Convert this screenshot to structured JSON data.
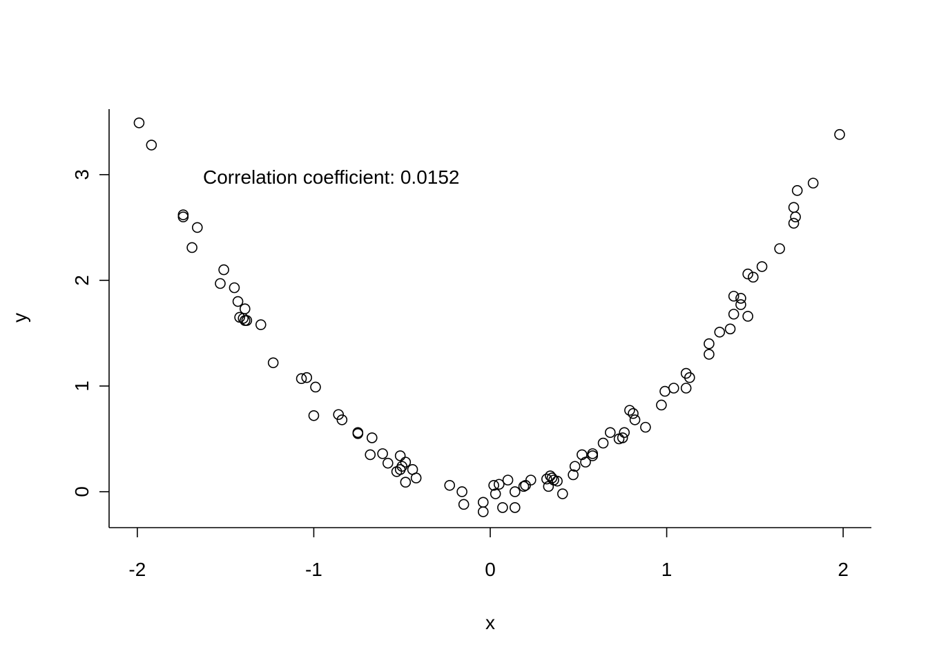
{
  "chart_data": {
    "type": "scatter",
    "title": "",
    "xlabel": "x",
    "ylabel": "y",
    "xlim": [
      -2.16,
      2.16
    ],
    "ylim": [
      -0.34,
      3.62
    ],
    "grid": false,
    "x_ticks": [
      -2,
      -1,
      0,
      1,
      2
    ],
    "y_ticks": [
      0,
      1,
      2,
      3
    ],
    "x_tick_labels": [
      "-2",
      "-1",
      "0",
      "1",
      "2"
    ],
    "y_tick_labels": [
      "0",
      "1",
      "2",
      "3"
    ],
    "annotation": "Correlation coefficient: 0.0152",
    "point_color": "#000000",
    "points": [
      {
        "x": -1.99,
        "y": 3.49
      },
      {
        "x": -1.92,
        "y": 3.28
      },
      {
        "x": -1.74,
        "y": 2.62
      },
      {
        "x": -1.74,
        "y": 2.6
      },
      {
        "x": -1.66,
        "y": 2.5
      },
      {
        "x": -1.69,
        "y": 2.31
      },
      {
        "x": -1.51,
        "y": 2.1
      },
      {
        "x": -1.53,
        "y": 1.97
      },
      {
        "x": -1.45,
        "y": 1.93
      },
      {
        "x": -1.43,
        "y": 1.8
      },
      {
        "x": -1.39,
        "y": 1.73
      },
      {
        "x": -1.42,
        "y": 1.65
      },
      {
        "x": -1.4,
        "y": 1.64
      },
      {
        "x": -1.39,
        "y": 1.62
      },
      {
        "x": -1.38,
        "y": 1.62
      },
      {
        "x": -1.3,
        "y": 1.58
      },
      {
        "x": -1.23,
        "y": 1.22
      },
      {
        "x": -1.07,
        "y": 1.07
      },
      {
        "x": -1.04,
        "y": 1.08
      },
      {
        "x": -0.99,
        "y": 0.99
      },
      {
        "x": -1.0,
        "y": 0.72
      },
      {
        "x": -0.86,
        "y": 0.73
      },
      {
        "x": -0.84,
        "y": 0.68
      },
      {
        "x": -0.75,
        "y": 0.56
      },
      {
        "x": -0.75,
        "y": 0.55
      },
      {
        "x": -0.67,
        "y": 0.51
      },
      {
        "x": -0.68,
        "y": 0.35
      },
      {
        "x": -0.61,
        "y": 0.36
      },
      {
        "x": -0.58,
        "y": 0.27
      },
      {
        "x": -0.51,
        "y": 0.34
      },
      {
        "x": -0.48,
        "y": 0.28
      },
      {
        "x": -0.5,
        "y": 0.24
      },
      {
        "x": -0.51,
        "y": 0.21
      },
      {
        "x": -0.53,
        "y": 0.19
      },
      {
        "x": -0.44,
        "y": 0.21
      },
      {
        "x": -0.42,
        "y": 0.13
      },
      {
        "x": -0.48,
        "y": 0.09
      },
      {
        "x": -0.23,
        "y": 0.06
      },
      {
        "x": -0.16,
        "y": 0.0
      },
      {
        "x": -0.15,
        "y": -0.12
      },
      {
        "x": -0.04,
        "y": -0.1
      },
      {
        "x": -0.04,
        "y": -0.19
      },
      {
        "x": 0.02,
        "y": 0.06
      },
      {
        "x": 0.05,
        "y": 0.07
      },
      {
        "x": 0.03,
        "y": -0.02
      },
      {
        "x": 0.07,
        "y": -0.15
      },
      {
        "x": 0.1,
        "y": 0.11
      },
      {
        "x": 0.14,
        "y": 0.0
      },
      {
        "x": 0.14,
        "y": -0.15
      },
      {
        "x": 0.19,
        "y": 0.05
      },
      {
        "x": 0.2,
        "y": 0.06
      },
      {
        "x": 0.23,
        "y": 0.11
      },
      {
        "x": 0.32,
        "y": 0.12
      },
      {
        "x": 0.34,
        "y": 0.15
      },
      {
        "x": 0.35,
        "y": 0.13
      },
      {
        "x": 0.36,
        "y": 0.11
      },
      {
        "x": 0.38,
        "y": 0.1
      },
      {
        "x": 0.33,
        "y": 0.05
      },
      {
        "x": 0.41,
        "y": -0.02
      },
      {
        "x": 0.47,
        "y": 0.16
      },
      {
        "x": 0.48,
        "y": 0.24
      },
      {
        "x": 0.52,
        "y": 0.35
      },
      {
        "x": 0.54,
        "y": 0.28
      },
      {
        "x": 0.58,
        "y": 0.36
      },
      {
        "x": 0.58,
        "y": 0.34
      },
      {
        "x": 0.64,
        "y": 0.46
      },
      {
        "x": 0.68,
        "y": 0.56
      },
      {
        "x": 0.73,
        "y": 0.5
      },
      {
        "x": 0.75,
        "y": 0.51
      },
      {
        "x": 0.76,
        "y": 0.56
      },
      {
        "x": 0.79,
        "y": 0.77
      },
      {
        "x": 0.81,
        "y": 0.74
      },
      {
        "x": 0.82,
        "y": 0.68
      },
      {
        "x": 0.88,
        "y": 0.61
      },
      {
        "x": 0.97,
        "y": 0.82
      },
      {
        "x": 0.99,
        "y": 0.95
      },
      {
        "x": 1.04,
        "y": 0.98
      },
      {
        "x": 1.11,
        "y": 0.98
      },
      {
        "x": 1.11,
        "y": 1.12
      },
      {
        "x": 1.13,
        "y": 1.08
      },
      {
        "x": 1.24,
        "y": 1.3
      },
      {
        "x": 1.24,
        "y": 1.4
      },
      {
        "x": 1.3,
        "y": 1.51
      },
      {
        "x": 1.36,
        "y": 1.54
      },
      {
        "x": 1.38,
        "y": 1.68
      },
      {
        "x": 1.38,
        "y": 1.85
      },
      {
        "x": 1.42,
        "y": 1.83
      },
      {
        "x": 1.42,
        "y": 1.77
      },
      {
        "x": 1.46,
        "y": 1.66
      },
      {
        "x": 1.46,
        "y": 2.06
      },
      {
        "x": 1.49,
        "y": 2.03
      },
      {
        "x": 1.54,
        "y": 2.13
      },
      {
        "x": 1.64,
        "y": 2.3
      },
      {
        "x": 1.72,
        "y": 2.54
      },
      {
        "x": 1.73,
        "y": 2.6
      },
      {
        "x": 1.72,
        "y": 2.69
      },
      {
        "x": 1.74,
        "y": 2.85
      },
      {
        "x": 1.83,
        "y": 2.92
      },
      {
        "x": 1.98,
        "y": 3.38
      }
    ]
  }
}
